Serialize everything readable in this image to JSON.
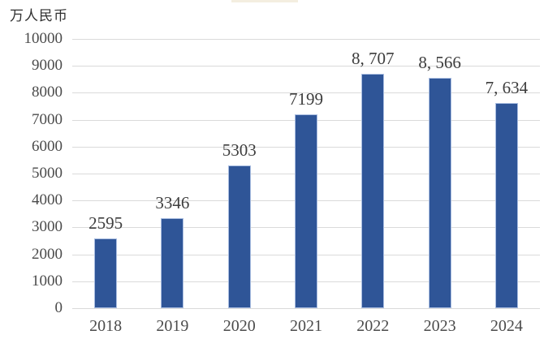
{
  "chart": {
    "unit_label": "万人民币",
    "artifact_strip_color": "#f1ead8"
  },
  "chart_data": {
    "type": "bar",
    "title": "",
    "xlabel": "",
    "ylabel": "万人民币",
    "categories": [
      "2018",
      "2019",
      "2020",
      "2021",
      "2022",
      "2023",
      "2024"
    ],
    "values": [
      2595,
      3346,
      5303,
      7199,
      8707,
      8566,
      7634
    ],
    "value_labels": [
      "2595",
      "3346",
      "5303",
      "7199",
      "8, 707",
      "8, 566",
      "7, 634"
    ],
    "series": [
      {
        "name": "",
        "values": [
          2595,
          3346,
          5303,
          7199,
          8707,
          8566,
          7634
        ]
      }
    ],
    "y_ticks": [
      0,
      1000,
      2000,
      3000,
      4000,
      5000,
      6000,
      7000,
      8000,
      9000,
      10000
    ],
    "y_tick_labels": [
      "0",
      "1000",
      "2000",
      "3000",
      "4000",
      "5000",
      "6000",
      "7000",
      "8000",
      "9000",
      "10000"
    ],
    "ylim": [
      0,
      10000
    ],
    "grid": "horizontal",
    "legend": "none",
    "bar_color": "#2f5597",
    "bar_border_color": "#a9bde1",
    "gridline_color": "#dadada",
    "label_color": "#3d3d3d",
    "tick_color": "#4b4b4b"
  }
}
